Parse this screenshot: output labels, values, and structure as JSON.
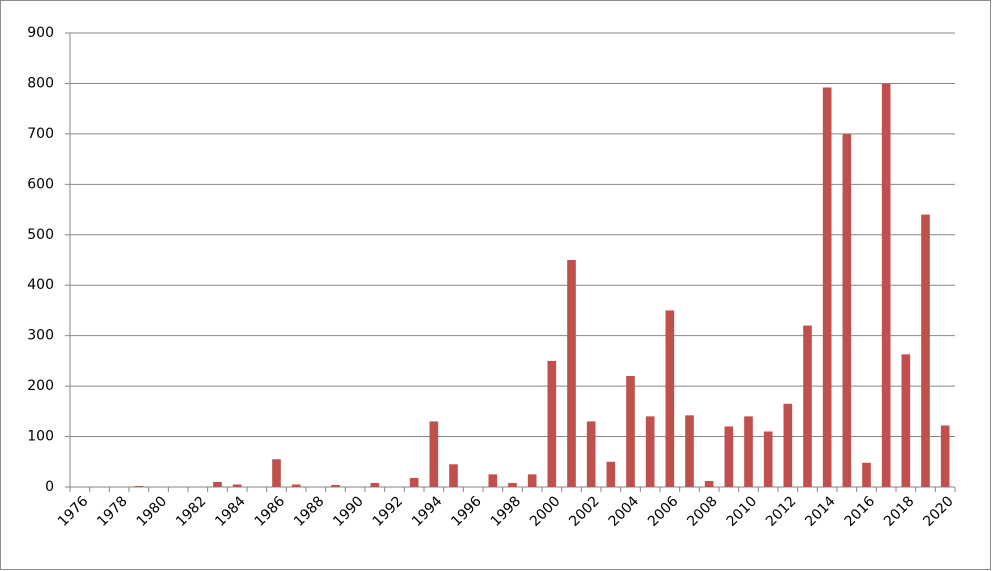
{
  "chart_data": {
    "type": "bar",
    "categories": [
      "1976",
      null,
      "1978",
      null,
      "1980",
      null,
      "1982",
      null,
      "1984",
      null,
      "1986",
      null,
      "1988",
      null,
      "1990",
      null,
      "1992",
      null,
      "1994",
      null,
      "1996",
      null,
      "1998",
      null,
      "2000",
      null,
      "2002",
      null,
      "2004",
      null,
      "2006",
      null,
      "2008",
      null,
      "2010",
      null,
      "2012",
      null,
      "2014",
      null,
      "2016",
      null,
      "2018",
      null,
      "2020"
    ],
    "values": [
      0,
      0,
      0,
      2,
      0,
      0,
      0,
      10,
      5,
      0,
      55,
      5,
      0,
      4,
      0,
      8,
      0,
      18,
      130,
      45,
      0,
      25,
      8,
      25,
      250,
      450,
      130,
      50,
      220,
      140,
      350,
      142,
      12,
      120,
      140,
      110,
      165,
      320,
      792,
      700,
      48,
      800,
      263,
      540,
      122
    ],
    "color": "#c0504d",
    "ylim": [
      0,
      900
    ],
    "yticks": [
      0,
      100,
      200,
      300,
      400,
      500,
      600,
      700,
      800,
      900
    ],
    "grid": true
  }
}
